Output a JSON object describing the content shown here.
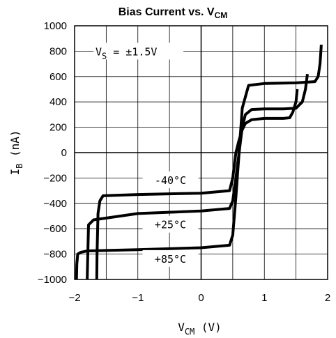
{
  "chart_data": {
    "type": "line",
    "title": "Bias Current vs. V",
    "title_sub": "CM",
    "xlabel": "V",
    "xlabel_sub": "CM",
    "xlabel_unit": " (V)",
    "ylabel": "I",
    "ylabel_sub": "B",
    "ylabel_unit": " (nA)",
    "xlim": [
      -2,
      2
    ],
    "ylim": [
      -1000,
      1000
    ],
    "xticks": [
      -2,
      -1,
      0,
      1,
      2
    ],
    "yticks": [
      1000,
      800,
      600,
      400,
      200,
      0,
      -200,
      -400,
      -600,
      -800,
      -1000
    ],
    "grid": true,
    "annotation": "V",
    "annotation_sub": "S",
    "annotation_rest": " = ±1.5V",
    "series": [
      {
        "name": "+85°C",
        "x": [
          -1.97,
          -1.965,
          -1.95,
          -1.9,
          -1.8,
          -1.0,
          0.0,
          0.45,
          0.5,
          0.55,
          0.6,
          0.65,
          0.75,
          1.0,
          1.5,
          1.8,
          1.85,
          1.88,
          1.9
        ],
        "y": [
          -1000,
          -880,
          -800,
          -785,
          -775,
          -765,
          -750,
          -730,
          -650,
          -350,
          0,
          350,
          530,
          545,
          550,
          560,
          600,
          700,
          850
        ]
      },
      {
        "name": "+25°C",
        "x": [
          -1.8,
          -1.795,
          -1.78,
          -1.7,
          -1.0,
          0.0,
          0.45,
          0.5,
          0.55,
          0.6,
          0.65,
          0.7,
          0.8,
          1.0,
          1.3,
          1.5,
          1.6,
          1.65,
          1.68
        ],
        "y": [
          -1000,
          -880,
          -570,
          -530,
          -480,
          -460,
          -440,
          -380,
          -200,
          0,
          200,
          300,
          340,
          345,
          345,
          350,
          400,
          500,
          620
        ]
      },
      {
        "name": "-40°C",
        "x": [
          -1.65,
          -1.645,
          -1.63,
          -1.6,
          -1.55,
          -1.0,
          0.0,
          0.45,
          0.5,
          0.55,
          0.6,
          0.65,
          0.7,
          0.8,
          1.0,
          1.3,
          1.4,
          1.45,
          1.5,
          1.52
        ],
        "y": [
          -1000,
          -800,
          -480,
          -380,
          -340,
          -330,
          -320,
          -300,
          -200,
          0,
          100,
          180,
          230,
          260,
          270,
          270,
          275,
          320,
          400,
          500
        ]
      }
    ],
    "labels": [
      {
        "text": "+85°C",
        "x": 0.0,
        "y": -840
      },
      {
        "text": "+25°C",
        "x": 0.0,
        "y": -570
      },
      {
        "text": "-40°C",
        "x": 0.0,
        "y": -220
      }
    ]
  }
}
